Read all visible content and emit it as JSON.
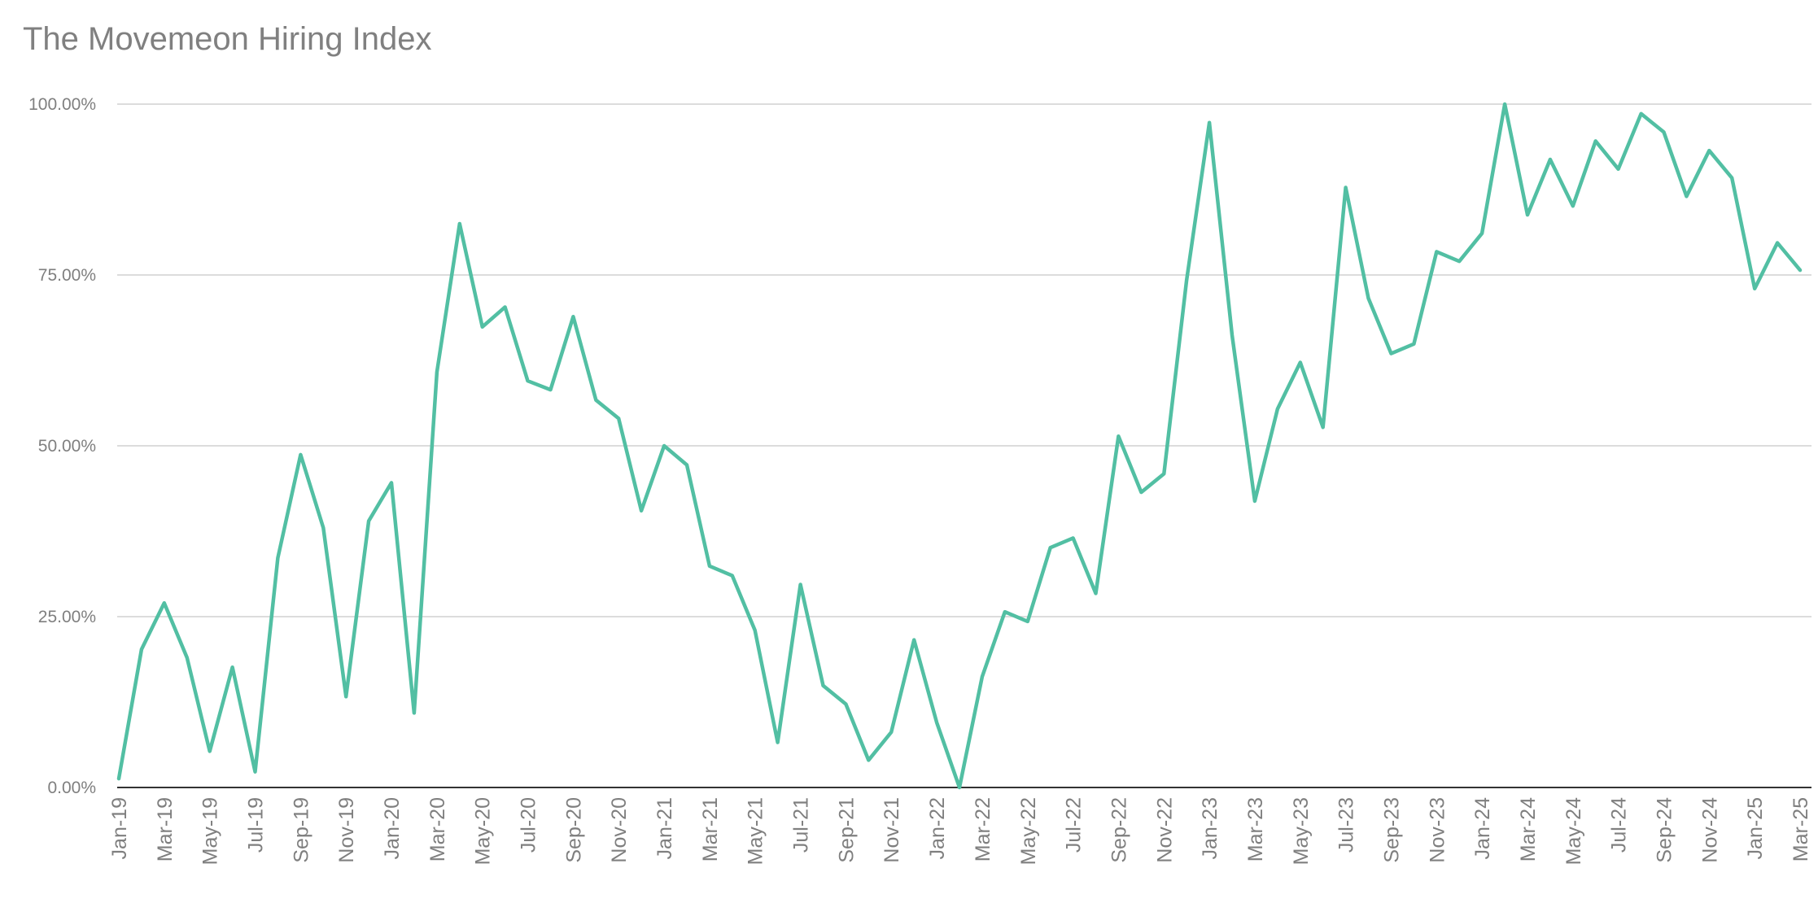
{
  "chart_data": {
    "type": "line",
    "title": "The Movemeon Hiring Index",
    "xlabel": "",
    "ylabel": "",
    "ylim": [
      0,
      100
    ],
    "yticks": [
      0,
      25,
      50,
      75,
      100
    ],
    "ytick_labels": [
      "0.00%",
      "25.00%",
      "50.00%",
      "75.00%",
      "100.00%"
    ],
    "grid": true,
    "legend": "none",
    "line_color": "#52bfa3",
    "x": [
      "Jan-19",
      "Feb-19",
      "Mar-19",
      "Apr-19",
      "May-19",
      "Jun-19",
      "Jul-19",
      "Aug-19",
      "Sep-19",
      "Oct-19",
      "Nov-19",
      "Dec-19",
      "Jan-20",
      "Feb-20",
      "Mar-20",
      "Apr-20",
      "May-20",
      "Jun-20",
      "Jul-20",
      "Aug-20",
      "Sep-20",
      "Oct-20",
      "Nov-20",
      "Dec-20",
      "Jan-21",
      "Feb-21",
      "Mar-21",
      "Apr-21",
      "May-21",
      "Jun-21",
      "Jul-21",
      "Aug-21",
      "Sep-21",
      "Oct-21",
      "Nov-21",
      "Dec-21",
      "Jan-22",
      "Feb-22",
      "Mar-22",
      "Apr-22",
      "May-22",
      "Jun-22",
      "Jul-22",
      "Aug-22",
      "Sep-22",
      "Oct-22",
      "Nov-22",
      "Dec-22",
      "Jan-23",
      "Feb-23",
      "Mar-23",
      "Apr-23",
      "May-23",
      "Jun-23",
      "Jul-23",
      "Aug-23",
      "Sep-23",
      "Oct-23",
      "Nov-23",
      "Dec-23",
      "Jan-24",
      "Feb-24",
      "Mar-24",
      "Apr-24",
      "May-24",
      "Jun-24",
      "Jul-24",
      "Aug-24",
      "Sep-24",
      "Oct-24",
      "Nov-24",
      "Dec-24",
      "Jan-25",
      "Feb-25",
      "Mar-25"
    ],
    "xtick_labels_shown": [
      "Jan-19",
      "Mar-19",
      "May-19",
      "Jul-19",
      "Sep-19",
      "Nov-19",
      "Jan-20",
      "Mar-20",
      "May-20",
      "Jul-20",
      "Sep-20",
      "Nov-20",
      "Jan-21",
      "Mar-21",
      "May-21",
      "Jul-21",
      "Sep-21",
      "Nov-21",
      "Jan-22",
      "Mar-22",
      "May-22",
      "Jul-22",
      "Sep-22",
      "Nov-22",
      "Jan-23",
      "Mar-23",
      "May-23",
      "Jul-23",
      "Sep-23",
      "Nov-23",
      "Jan-24",
      "Mar-24",
      "May-24",
      "Jul-24",
      "Sep-24",
      "Nov-24",
      "Jan-25",
      "Mar-25"
    ],
    "series": [
      {
        "values": [
          1.3,
          20.2,
          27.0,
          19.0,
          5.3,
          17.6,
          2.3,
          33.6,
          48.7,
          38.0,
          13.3,
          39.0,
          44.6,
          10.9,
          60.8,
          82.5,
          67.4,
          70.3,
          59.5,
          58.2,
          68.9,
          56.7,
          54.0,
          40.5,
          50.0,
          47.2,
          32.4,
          31.0,
          23.0,
          6.6,
          29.7,
          14.9,
          12.2,
          4.0,
          8.1,
          21.6,
          9.5,
          0.0,
          16.2,
          25.7,
          24.3,
          35.1,
          36.5,
          28.4,
          51.4,
          43.2,
          45.9,
          74.3,
          97.3,
          66.2,
          41.9,
          55.4,
          62.2,
          52.7,
          87.8,
          71.6,
          63.5,
          64.9,
          78.4,
          77.0,
          81.1,
          100.0,
          83.8,
          91.9,
          85.1,
          94.6,
          90.5,
          98.6,
          95.9,
          86.5,
          93.2,
          89.2,
          73.0,
          79.7,
          75.7
        ]
      }
    ]
  }
}
